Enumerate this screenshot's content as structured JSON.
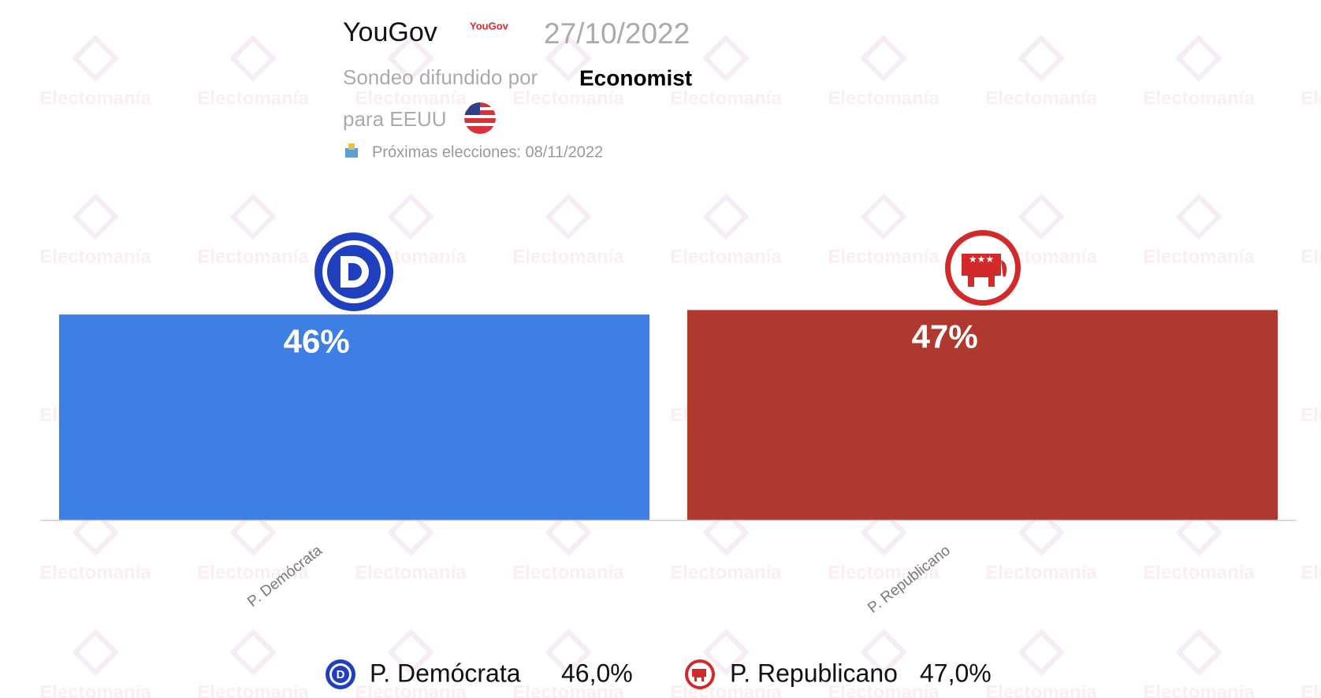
{
  "header": {
    "pollster": "YouGov",
    "pollster_logo": "YouGov",
    "date": "27/10/2022",
    "published_by": "Sondeo difundido por",
    "media": "Economist",
    "region": "para EEUU",
    "next_election": "Próximas elecciones: 08/11/2022"
  },
  "watermark": "Electomanía",
  "chart_data": {
    "type": "bar",
    "categories": [
      "P. Demócrata",
      "P. Republicano"
    ],
    "values": [
      46,
      47
    ],
    "value_labels": [
      "46%",
      "47%"
    ],
    "colors": [
      "#3d7fe3",
      "#b0392f"
    ],
    "ylim": [
      0,
      100
    ],
    "legend_labels": [
      "46,0%",
      "47,0%"
    ]
  }
}
